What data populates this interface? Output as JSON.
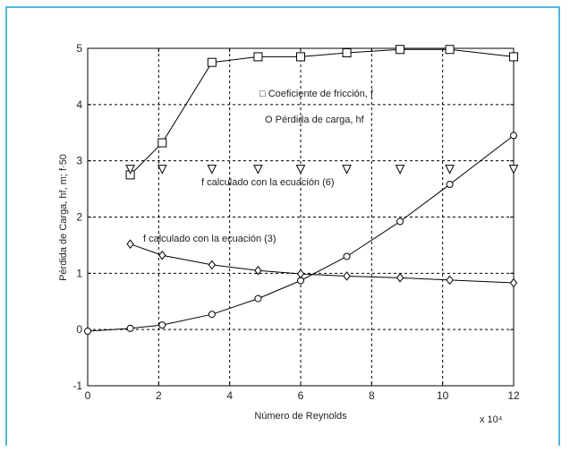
{
  "chart_data": {
    "type": "line",
    "xlabel": "Número de Reynolds",
    "ylabel": "Pérdida de Carga, hf, m; f·50",
    "x_multiplier": "x 10⁴",
    "xlim": [
      0,
      12
    ],
    "ylim": [
      -1,
      5
    ],
    "x_ticks": [
      "0",
      "2",
      "4",
      "6",
      "8",
      "10",
      "12"
    ],
    "y_ticks": [
      "-1",
      "0",
      "1",
      "2",
      "3",
      "4",
      "5"
    ],
    "grid": true,
    "annotations": [
      "□  Coeficiente de fricción, f",
      "O Pérdida de carga, hf",
      "f calculado con la ecuación (6)",
      "f calculado con la ecuación (3)"
    ],
    "series": [
      {
        "marker": "square",
        "x": [
          1.2,
          2.1,
          3.5,
          4.8,
          6.0,
          7.3,
          8.8,
          10.2,
          12.0
        ],
        "y": [
          2.75,
          3.32,
          4.75,
          4.85,
          4.85,
          4.92,
          4.98,
          4.98,
          4.85
        ]
      },
      {
        "marker": "circle",
        "x": [
          0,
          1.2,
          2.1,
          3.5,
          4.8,
          6.0,
          7.3,
          8.8,
          10.2,
          12.0
        ],
        "y": [
          -0.03,
          0.02,
          0.08,
          0.27,
          0.55,
          0.87,
          1.3,
          1.92,
          2.58,
          3.45
        ]
      },
      {
        "marker": "triangle-down",
        "x": [
          1.2,
          2.1,
          3.5,
          4.8,
          6.0,
          7.3,
          8.8,
          10.2,
          12.0
        ],
        "y": [
          2.85,
          2.85,
          2.85,
          2.85,
          2.85,
          2.85,
          2.85,
          2.85,
          2.85
        ]
      },
      {
        "marker": "diamond",
        "x": [
          1.2,
          2.1,
          3.5,
          4.8,
          6.0,
          7.3,
          8.8,
          10.2,
          12.0
        ],
        "y": [
          1.52,
          1.32,
          1.15,
          1.05,
          0.99,
          0.95,
          0.92,
          0.88,
          0.83
        ]
      }
    ]
  }
}
